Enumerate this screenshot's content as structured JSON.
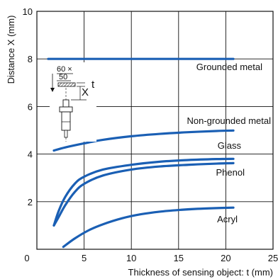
{
  "chart_data": {
    "type": "line",
    "title": "",
    "xlabel": "Thickness of sensing object: t (mm)",
    "ylabel": "Distance X (mm)",
    "xlim": [
      0,
      25
    ],
    "ylim": [
      0,
      10
    ],
    "xticks": [
      0,
      5,
      10,
      15,
      20,
      25
    ],
    "yticks": [
      2,
      4,
      6,
      8,
      10
    ],
    "grid": true,
    "line_color": "#1a5fb4",
    "series": [
      {
        "name": "Grounded metal",
        "x": [
          1.2,
          5,
          10,
          15,
          20.8
        ],
        "y": [
          8.0,
          8.0,
          8.0,
          8.0,
          8.0
        ]
      },
      {
        "name": "Non-grounded metal",
        "x": [
          1.8,
          3,
          5,
          7,
          10,
          13,
          16,
          19,
          20.8
        ],
        "y": [
          4.15,
          4.28,
          4.45,
          4.6,
          4.75,
          4.85,
          4.92,
          4.97,
          4.99
        ]
      },
      {
        "name": "Glass",
        "x": [
          1.8,
          2.3,
          3,
          4,
          5,
          7,
          10,
          13,
          16,
          19,
          20.8
        ],
        "y": [
          1.0,
          1.6,
          2.2,
          2.75,
          3.05,
          3.35,
          3.55,
          3.68,
          3.75,
          3.79,
          3.8
        ]
      },
      {
        "name": "Phenol",
        "x": [
          1.8,
          2.3,
          3,
          4,
          5,
          7,
          10,
          13,
          16,
          19,
          20.8
        ],
        "y": [
          1.0,
          1.35,
          1.85,
          2.4,
          2.75,
          3.1,
          3.35,
          3.48,
          3.55,
          3.6,
          3.62
        ]
      },
      {
        "name": "Acryl",
        "x": [
          2.8,
          4,
          5.5,
          7,
          9,
          11,
          13,
          15,
          17,
          19,
          20.8
        ],
        "y": [
          0.1,
          0.45,
          0.8,
          1.05,
          1.3,
          1.47,
          1.58,
          1.65,
          1.7,
          1.73,
          1.75
        ]
      }
    ],
    "labels": {
      "grounded_metal": "Grounded metal",
      "non_grounded_metal": "Non-grounded metal",
      "glass": "Glass",
      "phenol": "Phenol",
      "acryl": "Acryl"
    },
    "inset": {
      "dim_60": "60 ×",
      "dim_50": "50",
      "t": "t",
      "x": "X"
    }
  }
}
